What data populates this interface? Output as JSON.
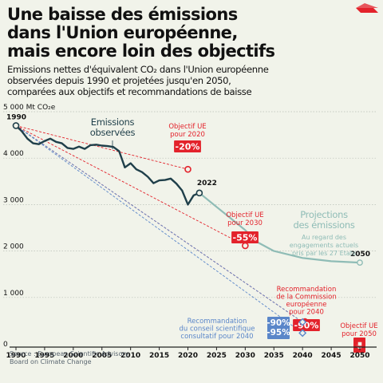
{
  "title_lines": [
    "Une baisse des émissions",
    "dans l'Union européenne,",
    "mais encore loin des objectifs"
  ],
  "subtitle_lines": [
    "Emissions nettes d'équivalent CO₂ dans l'Union européenne",
    "observées depuis 1990 et projetées jusqu'en 2050,",
    "comparées aux objectifs et recommandations de baisse"
  ],
  "source_lines": [
    "Source : European Scientific Advisory",
    "Board on Climate Change"
  ],
  "colors": {
    "observed": "#1f3f4a",
    "projection": "#8fbcb6",
    "target": "#e3222b",
    "recommendation": "#5a86c9",
    "background": "#f1f3ea",
    "grid": "#b9bfb7"
  },
  "chart_data": {
    "type": "line",
    "y_unit_label": "5 000 Mt CO₂e",
    "xlim": [
      1990,
      2050
    ],
    "ylim": [
      0,
      5000
    ],
    "x_ticks": [
      {
        "value": 1990,
        "label": "1990"
      },
      {
        "value": 1995,
        "label": "1995"
      },
      {
        "value": 2000,
        "label": "2000"
      },
      {
        "value": 2005,
        "label": "2005"
      },
      {
        "value": 2010,
        "label": "2010"
      },
      {
        "value": 2015,
        "label": "2015"
      },
      {
        "value": 2020,
        "label": "2020"
      },
      {
        "value": 2025,
        "label": "2025"
      },
      {
        "value": 2030,
        "label": "2030"
      },
      {
        "value": 2035,
        "label": "2035"
      },
      {
        "value": 2040,
        "label": "2040"
      },
      {
        "value": 2045,
        "label": "2045"
      },
      {
        "value": 2050,
        "label": "2050"
      }
    ],
    "y_ticks": [
      {
        "value": 1000,
        "label": "1 000"
      },
      {
        "value": 2000,
        "label": "2 000"
      },
      {
        "value": 3000,
        "label": "3 000"
      },
      {
        "value": 4000,
        "label": "4 000"
      },
      {
        "value": 0,
        "label": "0"
      }
    ],
    "grid": true,
    "series": [
      {
        "name": "Emissions observées",
        "label_lines": [
          "Emissions",
          "observées"
        ],
        "style": "observed",
        "points": [
          [
            1990,
            4700
          ],
          [
            1991,
            4580
          ],
          [
            1992,
            4420
          ],
          [
            1993,
            4320
          ],
          [
            1994,
            4300
          ],
          [
            1995,
            4370
          ],
          [
            1996,
            4420
          ],
          [
            1997,
            4350
          ],
          [
            1998,
            4320
          ],
          [
            1999,
            4220
          ],
          [
            2000,
            4200
          ],
          [
            2001,
            4250
          ],
          [
            2002,
            4200
          ],
          [
            2003,
            4280
          ],
          [
            2004,
            4290
          ],
          [
            2005,
            4270
          ],
          [
            2006,
            4260
          ],
          [
            2007,
            4240
          ],
          [
            2008,
            4150
          ],
          [
            2009,
            3800
          ],
          [
            2010,
            3890
          ],
          [
            2011,
            3760
          ],
          [
            2012,
            3700
          ],
          [
            2013,
            3600
          ],
          [
            2014,
            3460
          ],
          [
            2015,
            3520
          ],
          [
            2016,
            3530
          ],
          [
            2017,
            3560
          ],
          [
            2018,
            3450
          ],
          [
            2019,
            3300
          ],
          [
            2020,
            3000
          ],
          [
            2021,
            3200
          ],
          [
            2022,
            3250
          ]
        ],
        "end_label": "2022",
        "start_label": "1990"
      },
      {
        "name": "Projections des émissions",
        "label_lines": [
          "Projections",
          "des émissions"
        ],
        "note_lines": [
          "Au regard des",
          "engagements actuels",
          "pris par les 27 Etats"
        ],
        "style": "projection",
        "points": [
          [
            2022,
            3250
          ],
          [
            2025,
            2950
          ],
          [
            2027,
            2750
          ],
          [
            2030,
            2450
          ],
          [
            2032,
            2200
          ],
          [
            2035,
            2000
          ],
          [
            2040,
            1850
          ],
          [
            2045,
            1780
          ],
          [
            2050,
            1750
          ]
        ],
        "end_label": "2050"
      }
    ],
    "markers": [
      {
        "name": "Objectif UE pour 2020",
        "title_lines": [
          "Objectif UE",
          "pour 2020"
        ],
        "badge": "-20%",
        "x": 2020,
        "y": 3760,
        "from": [
          1990,
          4700
        ],
        "line": "target",
        "marker": "circle"
      },
      {
        "name": "Objectif UE pour 2030",
        "title_lines": [
          "Objectif UE",
          "pour 2030"
        ],
        "badge": "-55%",
        "x": 2030,
        "y": 2115,
        "from": [
          1990,
          4700
        ],
        "line": "target",
        "marker": "circle"
      },
      {
        "name": "Recommandation de la Commission européenne pour 2040",
        "title_lines": [
          "Recommandation",
          "de la Commission",
          "européenne",
          "pour 2040"
        ],
        "badge": "-90%",
        "x": 2040,
        "y": 470,
        "from": [
          1990,
          4700
        ],
        "line": "target",
        "marker": "circle"
      },
      {
        "name": "Recommandation du conseil scientifique consultatif pour 2040",
        "title_lines": [
          "Recommandation",
          "du conseil scientifique",
          "consultatif pour 2040"
        ],
        "badge_lines": [
          "-90%",
          "-95%"
        ],
        "x": 2040,
        "y": 470,
        "y2": 235,
        "from": [
          1990,
          4700
        ],
        "line": "recommendation",
        "marker": "diamond"
      },
      {
        "name": "Objectif UE pour 2050",
        "title_lines": [
          "Objectif UE",
          "pour 2050"
        ],
        "badge": "0",
        "x": 2050,
        "y": 0,
        "from": null,
        "line": null,
        "marker": "square"
      }
    ]
  }
}
